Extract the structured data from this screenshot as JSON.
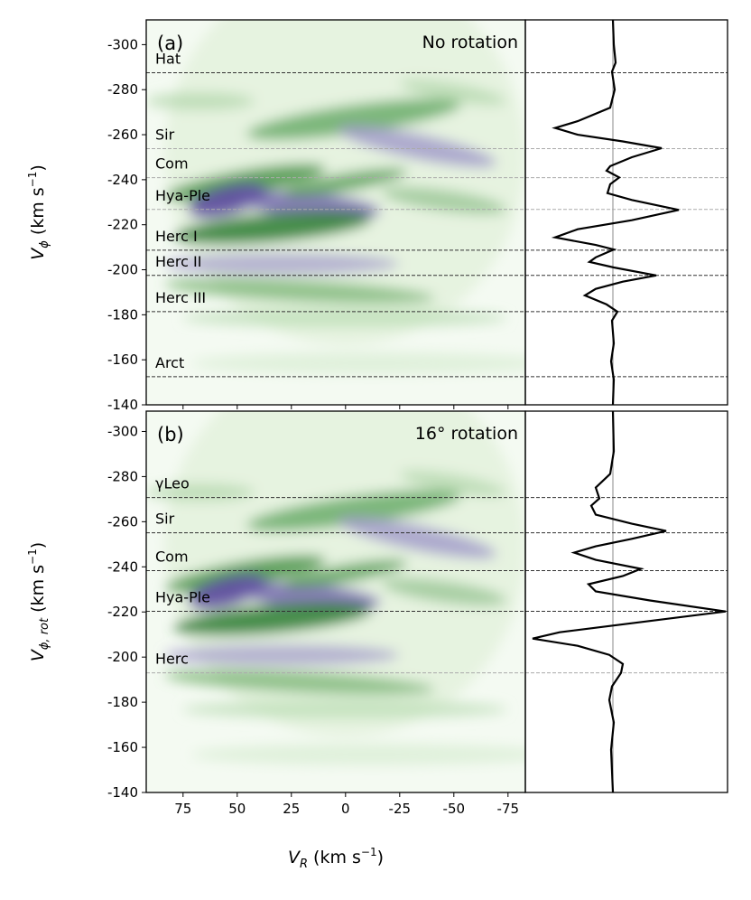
{
  "chart_data": [
    {
      "type": "line",
      "label": "(a)",
      "title": "No rotation",
      "ylabel": {
        "main": "V",
        "sub": "ϕ",
        "unit": " (km s",
        "sup": "−1",
        "end": ")"
      },
      "xlim": [
        92,
        -83
      ],
      "xticks": [
        75,
        50,
        25,
        0,
        -25,
        -50,
        -75
      ],
      "xticklabels": false,
      "ylim": [
        -140,
        -311
      ],
      "yticks": [
        -300,
        -280,
        -260,
        -240,
        -220,
        -200,
        -180,
        -160,
        -140
      ],
      "moving_groups": [
        {
          "name": "Hat",
          "v": -287.5,
          "color": "#000000"
        },
        {
          "name": "Sir",
          "v": -253.8,
          "color": "#808080"
        },
        {
          "name": "Com",
          "v": -240.9,
          "color": "#808080"
        },
        {
          "name": "Hya-Ple",
          "v": -226.8,
          "color": "#808080"
        },
        {
          "name": "Herc I",
          "v": -208.7,
          "color": "#000000"
        },
        {
          "name": "Herc II",
          "v": -197.5,
          "color": "#000000"
        },
        {
          "name": "Herc III",
          "v": -181.4,
          "color": "#000000"
        },
        {
          "name": "Arct",
          "v": -152.5,
          "color": "#000000"
        }
      ],
      "profile": {
        "color": "#000000",
        "xlim": [
          -0.97,
          1.27
        ],
        "y": [
          -311,
          -300,
          -292,
          -288,
          -280,
          -272,
          -266,
          -263,
          -260,
          -257,
          -254,
          -250,
          -246,
          -244,
          -241,
          -238,
          -234,
          -231,
          -226.6,
          -222,
          -218,
          -214.4,
          -211,
          -209,
          -205.5,
          -203.5,
          -201,
          -197.5,
          -194.7,
          -191.5,
          -188.6,
          -184.6,
          -181.4,
          -177.4,
          -167.3,
          -159.3,
          -151.2,
          -140
        ],
        "values": [
          0,
          0.01,
          0.03,
          -0.01,
          0.02,
          -0.03,
          -0.39,
          -0.64,
          -0.39,
          0.11,
          0.54,
          0.21,
          -0.03,
          -0.07,
          0.07,
          -0.03,
          -0.06,
          0.21,
          0.73,
          0.21,
          -0.39,
          -0.64,
          -0.19,
          0.01,
          -0.19,
          -0.26,
          0.01,
          0.48,
          0.11,
          -0.19,
          -0.31,
          -0.07,
          0.05,
          -0.01,
          0.01,
          -0.02,
          0.01,
          0
        ]
      }
    },
    {
      "type": "line",
      "label": "(b)",
      "title": "16° rotation",
      "ylabel": {
        "main": "V",
        "sub": "ϕ, rot",
        "unit": " (km s",
        "sup": "−1",
        "end": ")"
      },
      "xlabel": {
        "main": "V",
        "sub": "R",
        "unit": " (km s",
        "sup": "−1",
        "end": ")"
      },
      "xlim": [
        92,
        -83
      ],
      "xticks": [
        75,
        50,
        25,
        0,
        -25,
        -50,
        -75
      ],
      "xticklabels": true,
      "ylim": [
        -140,
        -309
      ],
      "yticks": [
        -300,
        -280,
        -260,
        -240,
        -220,
        -200,
        -180,
        -160,
        -140
      ],
      "moving_groups": [
        {
          "name": "γLeo",
          "v": -270.7,
          "color": "#000000"
        },
        {
          "name": "Sir",
          "v": -255.1,
          "color": "#000000"
        },
        {
          "name": "Com",
          "v": -238.3,
          "color": "#000000"
        },
        {
          "name": "Hya-Ple",
          "v": -220.3,
          "color": "#000000"
        },
        {
          "name": "Herc",
          "v": -193.0,
          "color": "#808080"
        }
      ],
      "profile": {
        "color": "#000000",
        "xlim": [
          -0.97,
          1.27
        ],
        "y": [
          -309.2,
          -291.2,
          -281.2,
          -275.1,
          -270.3,
          -267.1,
          -263.1,
          -259.1,
          -255.9,
          -252.4,
          -249.1,
          -246.3,
          -243.1,
          -239.1,
          -235.9,
          -232.3,
          -229.1,
          -225.1,
          -220.2,
          -215.0,
          -211.0,
          -208.2,
          -205.0,
          -201.0,
          -197.0,
          -193.0,
          -187.0,
          -181.0,
          -171.0,
          -159.0,
          -140.2
        ],
        "values": [
          0,
          0.01,
          -0.03,
          -0.19,
          -0.15,
          -0.24,
          -0.19,
          0.21,
          0.59,
          0.21,
          -0.19,
          -0.43,
          -0.19,
          0.31,
          0.11,
          -0.27,
          -0.19,
          0.41,
          1.25,
          0.21,
          -0.59,
          -0.89,
          -0.39,
          -0.04,
          0.11,
          0.09,
          -0.01,
          -0.04,
          0.01,
          -0.02,
          0
        ]
      }
    }
  ]
}
